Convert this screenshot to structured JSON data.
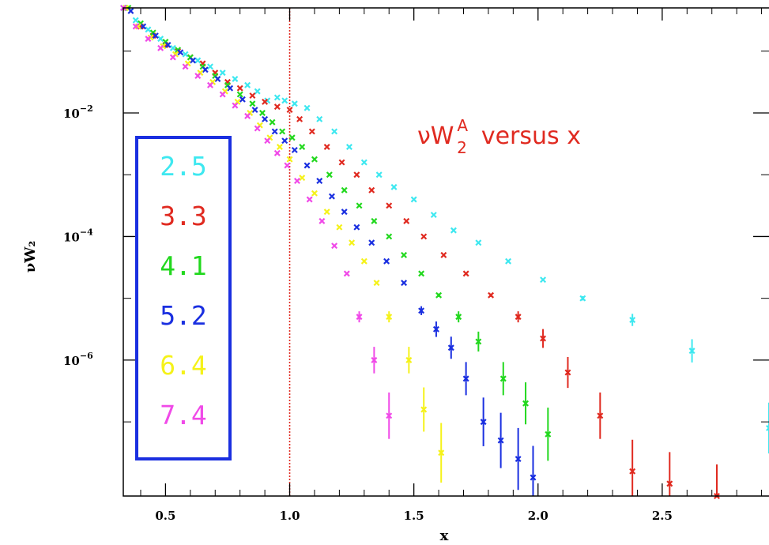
{
  "chart_data": {
    "type": "scatter",
    "title": "",
    "xlabel": "x",
    "ylabel": "νW₂",
    "annotation": {
      "text_main": "νW",
      "superscript": "A",
      "subscript": "2",
      "text_tail": "versus x"
    },
    "x_range": [
      0.33,
      2.93
    ],
    "y_log_range": [
      -8.2,
      -4.85
    ],
    "y_scale": "log10",
    "x_ticks": [
      0.5,
      1.0,
      1.5,
      2.0,
      2.5
    ],
    "x_tick_labels": [
      "0.5",
      "1.0",
      "1.5",
      "2.0",
      "2.5"
    ],
    "y_ticks": [
      -6,
      -4,
      -2
    ],
    "y_tick_labels": [
      {
        "base": "10",
        "exp": "−6",
        "value": -6
      },
      {
        "base": "10",
        "exp": "−4",
        "value": -4
      },
      {
        "base": "10",
        "exp": "−2",
        "value": -2
      }
    ],
    "reference_line": {
      "x": 1.0,
      "color": "#e02a20",
      "style": "dotted"
    },
    "legend": {
      "placement": "left",
      "border_color": "#1a2fe0"
    },
    "series": [
      {
        "name": "2.5",
        "color": "#3ee8f0",
        "points": [
          {
            "x": 0.33,
            "y": -0.3
          },
          {
            "x": 0.38,
            "y": -0.5
          },
          {
            "x": 0.43,
            "y": -0.65
          },
          {
            "x": 0.48,
            "y": -0.8
          },
          {
            "x": 0.53,
            "y": -0.95
          },
          {
            "x": 0.58,
            "y": -1.05
          },
          {
            "x": 0.63,
            "y": -1.15
          },
          {
            "x": 0.68,
            "y": -1.25
          },
          {
            "x": 0.73,
            "y": -1.35
          },
          {
            "x": 0.78,
            "y": -1.45
          },
          {
            "x": 0.83,
            "y": -1.55
          },
          {
            "x": 0.87,
            "y": -1.65
          },
          {
            "x": 0.91,
            "y": -1.8
          },
          {
            "x": 0.95,
            "y": -1.75
          },
          {
            "x": 0.98,
            "y": -1.8
          },
          {
            "x": 1.02,
            "y": -1.85
          },
          {
            "x": 1.07,
            "y": -1.92
          },
          {
            "x": 1.12,
            "y": -2.1
          },
          {
            "x": 1.18,
            "y": -2.3
          },
          {
            "x": 1.24,
            "y": -2.55
          },
          {
            "x": 1.3,
            "y": -2.8
          },
          {
            "x": 1.36,
            "y": -3.0
          },
          {
            "x": 1.42,
            "y": -3.2
          },
          {
            "x": 1.5,
            "y": -3.4
          },
          {
            "x": 1.58,
            "y": -3.65
          },
          {
            "x": 1.66,
            "y": -3.9
          },
          {
            "x": 1.76,
            "y": -4.1
          },
          {
            "x": 1.88,
            "y": -4.4
          },
          {
            "x": 2.02,
            "y": -4.7
          },
          {
            "x": 2.18,
            "y": -5.0
          },
          {
            "x": 2.38,
            "y": -5.35
          },
          {
            "x": 2.62,
            "y": -5.85
          },
          {
            "x": 2.93,
            "y": -7.1
          }
        ]
      },
      {
        "name": "3.3",
        "color": "#e02a20",
        "points": [
          {
            "x": 0.4,
            "y": -0.6
          },
          {
            "x": 0.45,
            "y": -0.75
          },
          {
            "x": 0.5,
            "y": -0.9
          },
          {
            "x": 0.55,
            "y": -1.0
          },
          {
            "x": 0.6,
            "y": -1.1
          },
          {
            "x": 0.65,
            "y": -1.2
          },
          {
            "x": 0.7,
            "y": -1.35
          },
          {
            "x": 0.75,
            "y": -1.5
          },
          {
            "x": 0.8,
            "y": -1.6
          },
          {
            "x": 0.85,
            "y": -1.72
          },
          {
            "x": 0.9,
            "y": -1.82
          },
          {
            "x": 0.95,
            "y": -1.9
          },
          {
            "x": 1.0,
            "y": -1.95
          },
          {
            "x": 1.04,
            "y": -2.1
          },
          {
            "x": 1.09,
            "y": -2.3
          },
          {
            "x": 1.15,
            "y": -2.55
          },
          {
            "x": 1.21,
            "y": -2.8
          },
          {
            "x": 1.27,
            "y": -3.0
          },
          {
            "x": 1.33,
            "y": -3.25
          },
          {
            "x": 1.4,
            "y": -3.5
          },
          {
            "x": 1.47,
            "y": -3.75
          },
          {
            "x": 1.54,
            "y": -4.0
          },
          {
            "x": 1.62,
            "y": -4.3
          },
          {
            "x": 1.71,
            "y": -4.6
          },
          {
            "x": 1.81,
            "y": -4.95
          },
          {
            "x": 1.92,
            "y": -5.3
          },
          {
            "x": 2.02,
            "y": -5.65
          },
          {
            "x": 2.12,
            "y": -6.2
          },
          {
            "x": 2.25,
            "y": -6.9
          },
          {
            "x": 2.38,
            "y": -7.8
          },
          {
            "x": 2.53,
            "y": -8.0
          },
          {
            "x": 2.72,
            "y": -8.2
          }
        ]
      },
      {
        "name": "4.1",
        "color": "#22d81e",
        "points": [
          {
            "x": 0.35,
            "y": -0.3
          },
          {
            "x": 0.4,
            "y": -0.55
          },
          {
            "x": 0.45,
            "y": -0.7
          },
          {
            "x": 0.5,
            "y": -0.85
          },
          {
            "x": 0.55,
            "y": -0.98
          },
          {
            "x": 0.6,
            "y": -1.1
          },
          {
            "x": 0.65,
            "y": -1.25
          },
          {
            "x": 0.7,
            "y": -1.4
          },
          {
            "x": 0.75,
            "y": -1.55
          },
          {
            "x": 0.8,
            "y": -1.7
          },
          {
            "x": 0.85,
            "y": -1.85
          },
          {
            "x": 0.89,
            "y": -2.0
          },
          {
            "x": 0.93,
            "y": -2.15
          },
          {
            "x": 0.97,
            "y": -2.3
          },
          {
            "x": 1.01,
            "y": -2.4
          },
          {
            "x": 1.05,
            "y": -2.55
          },
          {
            "x": 1.1,
            "y": -2.75
          },
          {
            "x": 1.16,
            "y": -3.0
          },
          {
            "x": 1.22,
            "y": -3.25
          },
          {
            "x": 1.28,
            "y": -3.5
          },
          {
            "x": 1.34,
            "y": -3.75
          },
          {
            "x": 1.4,
            "y": -4.0
          },
          {
            "x": 1.46,
            "y": -4.3
          },
          {
            "x": 1.53,
            "y": -4.6
          },
          {
            "x": 1.6,
            "y": -4.95
          },
          {
            "x": 1.68,
            "y": -5.3
          },
          {
            "x": 1.76,
            "y": -5.7
          },
          {
            "x": 1.86,
            "y": -6.3
          },
          {
            "x": 1.95,
            "y": -6.7
          },
          {
            "x": 2.04,
            "y": -7.2
          }
        ]
      },
      {
        "name": "5.2",
        "color": "#1a2fe0",
        "points": [
          {
            "x": 0.36,
            "y": -0.35
          },
          {
            "x": 0.41,
            "y": -0.6
          },
          {
            "x": 0.46,
            "y": -0.75
          },
          {
            "x": 0.51,
            "y": -0.9
          },
          {
            "x": 0.56,
            "y": -1.02
          },
          {
            "x": 0.61,
            "y": -1.15
          },
          {
            "x": 0.66,
            "y": -1.3
          },
          {
            "x": 0.71,
            "y": -1.45
          },
          {
            "x": 0.76,
            "y": -1.6
          },
          {
            "x": 0.81,
            "y": -1.78
          },
          {
            "x": 0.86,
            "y": -1.95
          },
          {
            "x": 0.9,
            "y": -2.1
          },
          {
            "x": 0.94,
            "y": -2.3
          },
          {
            "x": 0.98,
            "y": -2.45
          },
          {
            "x": 1.02,
            "y": -2.6
          },
          {
            "x": 1.07,
            "y": -2.85
          },
          {
            "x": 1.12,
            "y": -3.1
          },
          {
            "x": 1.17,
            "y": -3.35
          },
          {
            "x": 1.22,
            "y": -3.6
          },
          {
            "x": 1.27,
            "y": -3.85
          },
          {
            "x": 1.33,
            "y": -4.1
          },
          {
            "x": 1.39,
            "y": -4.4
          },
          {
            "x": 1.46,
            "y": -4.75
          },
          {
            "x": 1.53,
            "y": -5.2
          },
          {
            "x": 1.59,
            "y": -5.5
          },
          {
            "x": 1.65,
            "y": -5.8
          },
          {
            "x": 1.71,
            "y": -6.3
          },
          {
            "x": 1.78,
            "y": -7.0
          },
          {
            "x": 1.85,
            "y": -7.3
          },
          {
            "x": 1.92,
            "y": -7.6
          },
          {
            "x": 1.98,
            "y": -7.9
          }
        ]
      },
      {
        "name": "6.4",
        "color": "#f5f21a",
        "points": [
          {
            "x": 0.34,
            "y": -0.3
          },
          {
            "x": 0.39,
            "y": -0.6
          },
          {
            "x": 0.44,
            "y": -0.78
          },
          {
            "x": 0.49,
            "y": -0.92
          },
          {
            "x": 0.54,
            "y": -1.05
          },
          {
            "x": 0.59,
            "y": -1.2
          },
          {
            "x": 0.64,
            "y": -1.35
          },
          {
            "x": 0.69,
            "y": -1.5
          },
          {
            "x": 0.74,
            "y": -1.65
          },
          {
            "x": 0.79,
            "y": -1.82
          },
          {
            "x": 0.84,
            "y": -2.0
          },
          {
            "x": 0.88,
            "y": -2.2
          },
          {
            "x": 0.92,
            "y": -2.4
          },
          {
            "x": 0.96,
            "y": -2.55
          },
          {
            "x": 1.0,
            "y": -2.75
          },
          {
            "x": 1.05,
            "y": -3.05
          },
          {
            "x": 1.1,
            "y": -3.3
          },
          {
            "x": 1.15,
            "y": -3.6
          },
          {
            "x": 1.2,
            "y": -3.85
          },
          {
            "x": 1.25,
            "y": -4.1
          },
          {
            "x": 1.3,
            "y": -4.4
          },
          {
            "x": 1.35,
            "y": -4.75
          },
          {
            "x": 1.4,
            "y": -5.3
          },
          {
            "x": 1.48,
            "y": -6.0
          },
          {
            "x": 1.54,
            "y": -6.8
          },
          {
            "x": 1.61,
            "y": -7.5
          }
        ]
      },
      {
        "name": "7.4",
        "color": "#f04ae8",
        "points": [
          {
            "x": 0.33,
            "y": -0.3
          },
          {
            "x": 0.38,
            "y": -0.6
          },
          {
            "x": 0.43,
            "y": -0.8
          },
          {
            "x": 0.48,
            "y": -0.95
          },
          {
            "x": 0.53,
            "y": -1.1
          },
          {
            "x": 0.58,
            "y": -1.25
          },
          {
            "x": 0.63,
            "y": -1.4
          },
          {
            "x": 0.68,
            "y": -1.55
          },
          {
            "x": 0.73,
            "y": -1.7
          },
          {
            "x": 0.78,
            "y": -1.88
          },
          {
            "x": 0.83,
            "y": -2.05
          },
          {
            "x": 0.87,
            "y": -2.25
          },
          {
            "x": 0.91,
            "y": -2.45
          },
          {
            "x": 0.95,
            "y": -2.65
          },
          {
            "x": 0.99,
            "y": -2.85
          },
          {
            "x": 1.03,
            "y": -3.1
          },
          {
            "x": 1.08,
            "y": -3.4
          },
          {
            "x": 1.13,
            "y": -3.75
          },
          {
            "x": 1.18,
            "y": -4.15
          },
          {
            "x": 1.23,
            "y": -4.6
          },
          {
            "x": 1.28,
            "y": -5.3
          },
          {
            "x": 1.34,
            "y": -6.0
          },
          {
            "x": 1.4,
            "y": -6.9
          }
        ]
      }
    ]
  }
}
